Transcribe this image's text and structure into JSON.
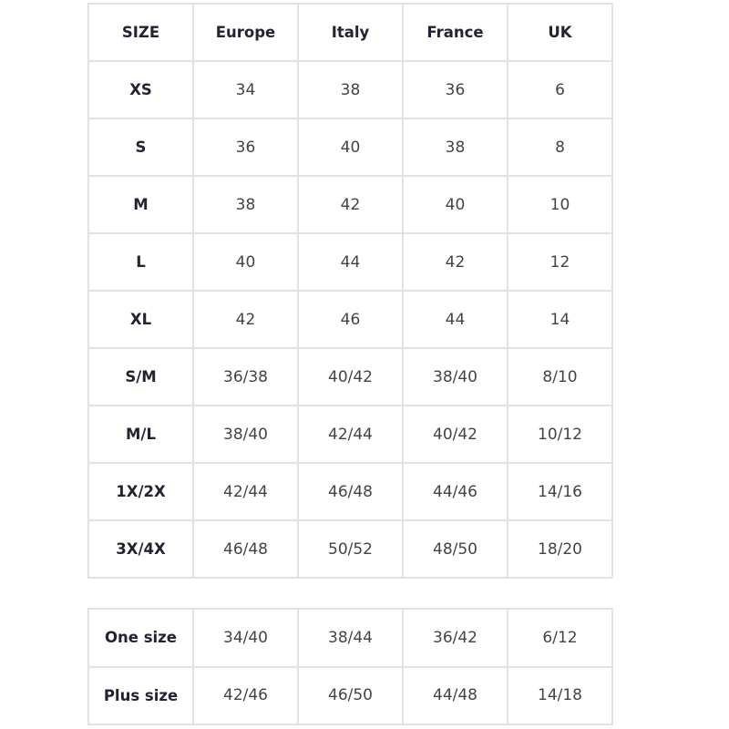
{
  "size_table": {
    "headers": [
      "SIZE",
      "Europe",
      "Italy",
      "France",
      "UK"
    ],
    "rows": [
      [
        "XS",
        "34",
        "38",
        "36",
        "6"
      ],
      [
        "S",
        "36",
        "40",
        "38",
        "8"
      ],
      [
        "M",
        "38",
        "42",
        "40",
        "10"
      ],
      [
        "L",
        "40",
        "44",
        "42",
        "12"
      ],
      [
        "XL",
        "42",
        "46",
        "44",
        "14"
      ],
      [
        "S/M",
        "36/38",
        "40/42",
        "38/40",
        "8/10"
      ],
      [
        "M/L",
        "38/40",
        "42/44",
        "40/42",
        "10/12"
      ],
      [
        "1X/2X",
        "42/44",
        "46/48",
        "44/46",
        "14/16"
      ],
      [
        "3X/4X",
        "46/48",
        "50/52",
        "48/50",
        "18/20"
      ]
    ]
  },
  "special_table": {
    "rows": [
      [
        "One size",
        "34/40",
        "38/44",
        "36/42",
        "6/12"
      ],
      [
        "Plus size",
        "42/46",
        "46/50",
        "44/48",
        "14/18"
      ]
    ]
  }
}
